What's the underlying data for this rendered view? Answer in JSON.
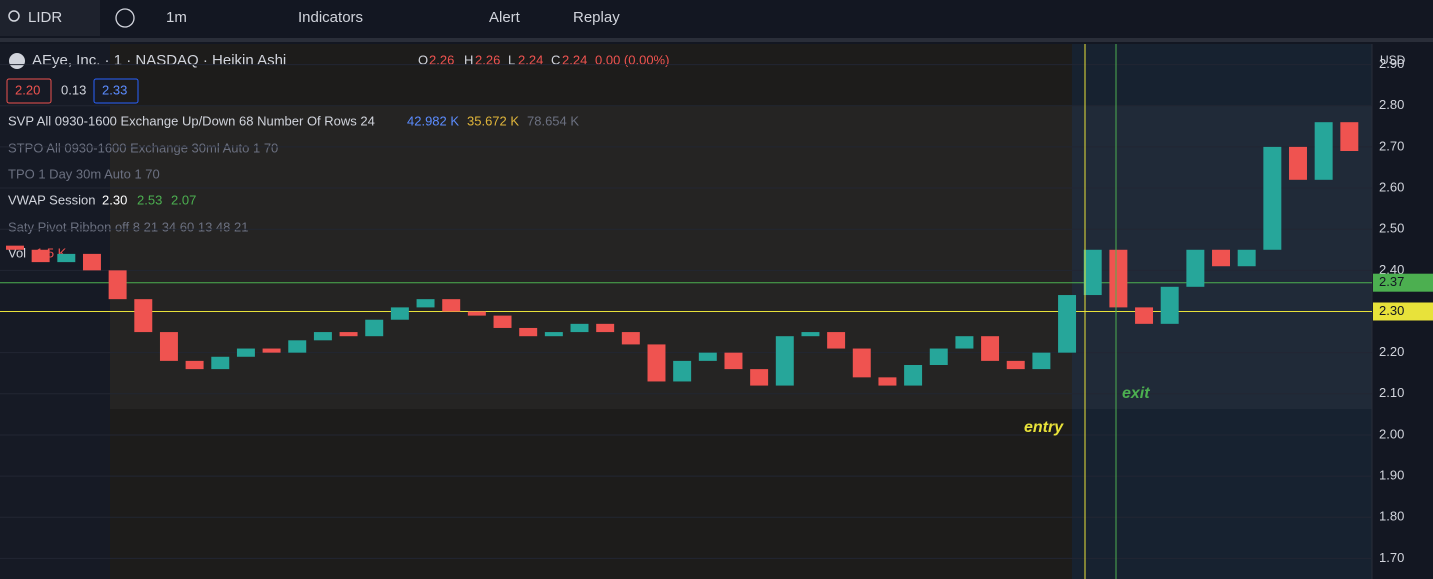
{
  "toolbar": {
    "symbol": "LIDR",
    "interval": "1m",
    "indicators": "Indicators",
    "alert": "Alert",
    "replay": "Replay"
  },
  "legend": {
    "title": "AEye, Inc. · 1 · NASDAQ · Heikin Ashi",
    "o_label": "O",
    "o": "2.26",
    "h_label": "H",
    "h": "2.26",
    "l_label": "L",
    "l": "2.24",
    "c_label": "C",
    "c": "2.24",
    "change": "0.00 (0.00%)",
    "bid": "2.20",
    "spread": "0.13",
    "ask": "2.33",
    "svp": "SVP All 0930-1600 Exchange Up/Down 68 Number Of Rows 24",
    "svp_up": "42.982 K",
    "svp_down": "35.672 K",
    "svp_total": "78.654 K",
    "stpo": "STPO All 0930-1600 Exchange 30ml Auto 1 70",
    "tpo": "TPO 1 Day 30m Auto 1 70",
    "vwap": "VWAP Session",
    "vwap_v": "2.30",
    "vwap_up": "2.53",
    "vwap_dn": "2.07",
    "saty": "Saty Pivot Ribbon off 8 21 34 60 13 48 21",
    "vol": "Vol",
    "vol_v": "1.5 K",
    "currency": "USD"
  },
  "chart_data": {
    "type": "candlestick",
    "open": [
      2.46,
      2.45,
      2.42,
      2.44,
      2.4,
      2.33,
      2.25,
      2.18,
      2.16,
      2.19,
      2.21,
      2.2,
      2.23,
      2.25,
      2.24,
      2.28,
      2.31,
      2.33,
      2.3,
      2.29,
      2.26,
      2.24,
      2.25,
      2.27,
      2.25,
      2.22,
      2.13,
      2.18,
      2.2,
      2.16,
      2.12,
      2.24,
      2.25,
      2.21,
      2.14,
      2.12,
      2.17,
      2.21,
      2.24,
      2.18,
      2.16,
      2.2,
      2.34,
      2.45,
      2.31,
      2.27,
      2.36,
      2.45,
      2.41,
      2.45,
      2.7,
      2.62,
      2.76
    ],
    "close": [
      2.45,
      2.42,
      2.44,
      2.4,
      2.33,
      2.25,
      2.18,
      2.16,
      2.19,
      2.21,
      2.2,
      2.23,
      2.25,
      2.24,
      2.28,
      2.31,
      2.33,
      2.3,
      2.29,
      2.26,
      2.24,
      2.25,
      2.27,
      2.25,
      2.22,
      2.13,
      2.18,
      2.2,
      2.16,
      2.12,
      2.24,
      2.25,
      2.21,
      2.14,
      2.12,
      2.17,
      2.21,
      2.24,
      2.18,
      2.16,
      2.2,
      2.34,
      2.45,
      2.31,
      2.27,
      2.36,
      2.45,
      2.41,
      2.45,
      2.7,
      2.62,
      2.76,
      2.69
    ],
    "up_color": "#26a69a",
    "down_color": "#ef5350",
    "ylim": [
      1.65,
      2.95
    ],
    "yticks": [
      {
        "value": 2.9,
        "label": "2.90"
      },
      {
        "value": 2.8,
        "label": "2.80"
      },
      {
        "value": 2.7,
        "label": "2.70"
      },
      {
        "value": 2.6,
        "label": "2.60"
      },
      {
        "value": 2.5,
        "label": "2.50"
      },
      {
        "value": 2.4,
        "label": "2.40"
      },
      {
        "value": 2.3,
        "label": "2.30"
      },
      {
        "value": 2.2,
        "label": "2.20"
      },
      {
        "value": 2.1,
        "label": "2.10"
      },
      {
        "value": 2.0,
        "label": "2.00"
      },
      {
        "value": 1.9,
        "label": "1.90"
      },
      {
        "value": 1.8,
        "label": "1.80"
      },
      {
        "value": 1.7,
        "label": "1.70"
      }
    ],
    "levels": [
      {
        "value": 2.37,
        "label": "2.37",
        "color": "#4caf50"
      },
      {
        "value": 2.3,
        "label": "2.30",
        "color": "#e8e23a"
      }
    ],
    "annotations": [
      {
        "text": "entry",
        "color": "#e8e23a"
      },
      {
        "text": "exit",
        "color": "#4caf50"
      }
    ]
  }
}
